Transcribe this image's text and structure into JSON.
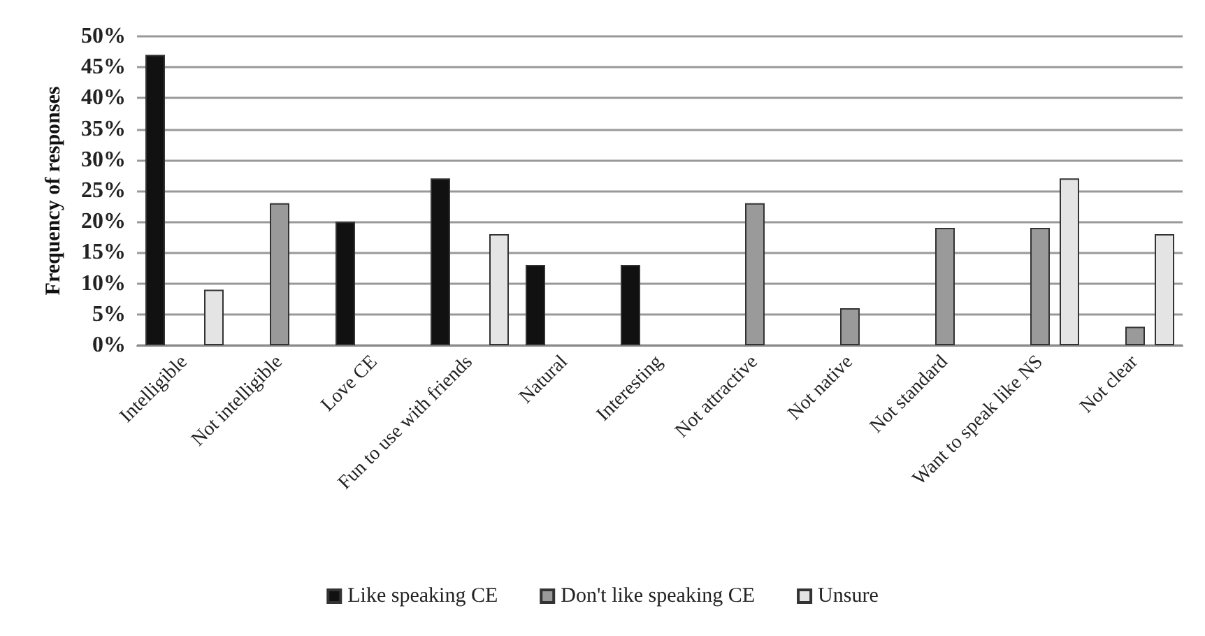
{
  "chart_data": {
    "type": "bar",
    "ylabel": "Frequency of responses",
    "categories": [
      "Intelligible",
      "Not intelligible",
      "Love CE",
      "Fun to use with friends",
      "Natural",
      "Interesting",
      "Not attractive",
      "Not native",
      "Not standard",
      "Want to speak like NS",
      "Not clear"
    ],
    "series": [
      {
        "name": "Like speaking CE",
        "color": "#111111",
        "values": [
          47,
          null,
          20,
          27,
          13,
          13,
          null,
          null,
          null,
          null,
          null
        ]
      },
      {
        "name": "Don't like speaking CE",
        "color": "#9a9a9a",
        "values": [
          null,
          23,
          null,
          null,
          null,
          null,
          23,
          6,
          19,
          19,
          3
        ]
      },
      {
        "name": "Unsure",
        "color": "#e4e4e4",
        "values": [
          9,
          null,
          null,
          18,
          null,
          null,
          null,
          null,
          null,
          27,
          18
        ]
      }
    ],
    "ylim": [
      0,
      50
    ],
    "yticks": [
      {
        "value": 0,
        "label": "0%"
      },
      {
        "value": 5,
        "label": "5%"
      },
      {
        "value": 10,
        "label": "10%"
      },
      {
        "value": 15,
        "label": "15%"
      },
      {
        "value": 20,
        "label": "20%"
      },
      {
        "value": 25,
        "label": "25%"
      },
      {
        "value": 30,
        "label": "30%"
      },
      {
        "value": 35,
        "label": "35%"
      },
      {
        "value": 40,
        "label": "40%"
      },
      {
        "value": 45,
        "label": "45%"
      },
      {
        "value": 50,
        "label": "50%"
      }
    ],
    "grid": "y",
    "legend": "bottom"
  }
}
